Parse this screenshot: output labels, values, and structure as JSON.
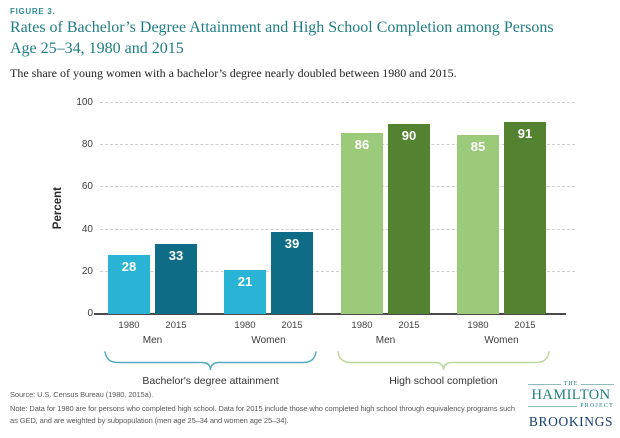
{
  "header": {
    "figure_label": "FIGURE 3.",
    "title_lines": [
      "Rates of Bachelor’s Degree Attainment and High School Completion among Persons",
      "Age 25–34, 1980 and 2015"
    ],
    "subtitle": "The share of young women with a bachelor’s degree nearly doubled between 1980 and 2015."
  },
  "chart_data": {
    "type": "bar",
    "title": "Rates of Bachelor’s Degree Attainment and High School Completion among Persons Age 25–34, 1980 and 2015",
    "ylabel": "Percent",
    "ylim": [
      0,
      100
    ],
    "yticks": [
      0,
      20,
      40,
      60,
      80,
      100
    ],
    "grid": "dashed-horizontal",
    "legend": "none (years labeled under bars)",
    "colors": {
      "bachelors_1980": "#29b4d6",
      "bachelors_2015": "#0e6c86",
      "highschool_1980": "#9cca7b",
      "highschool_2015": "#538231"
    },
    "groups": [
      {
        "label": "Bachelor's degree attainment",
        "brace_color": "#55abc3",
        "subgroups": [
          {
            "label": "Men",
            "bars": [
              {
                "year": "1980",
                "value": 28,
                "color": "#29b4d6"
              },
              {
                "year": "2015",
                "value": 33,
                "color": "#0e6c86"
              }
            ]
          },
          {
            "label": "Women",
            "bars": [
              {
                "year": "1980",
                "value": 21,
                "color": "#29b4d6"
              },
              {
                "year": "2015",
                "value": 39,
                "color": "#0e6c86"
              }
            ]
          }
        ]
      },
      {
        "label": "High school completion",
        "brace_color": "#bcd89c",
        "subgroups": [
          {
            "label": "Men",
            "bars": [
              {
                "year": "1980",
                "value": 86,
                "color": "#9cca7b"
              },
              {
                "year": "2015",
                "value": 90,
                "color": "#538231"
              }
            ]
          },
          {
            "label": "Women",
            "bars": [
              {
                "year": "1980",
                "value": 85,
                "color": "#9cca7b"
              },
              {
                "year": "2015",
                "value": 91,
                "color": "#538231"
              }
            ]
          }
        ]
      }
    ]
  },
  "footer": {
    "source": "Source: U.S. Census Bureau (1980, 2015a).",
    "note_lines": [
      "Note: Data for 1980 are for persons who completed high school. Data for 2015 include those who completed high school through equivalency programs such",
      "as GED, and are weighted by subpopulation (men age 25–34 and women age 25–34)."
    ]
  },
  "logo": {
    "the": "THE",
    "hamilton": "HAMILTON",
    "project": "PROJECT",
    "brookings": "BROOKINGS",
    "teal": "#1f7f81",
    "navy": "#173e72"
  }
}
